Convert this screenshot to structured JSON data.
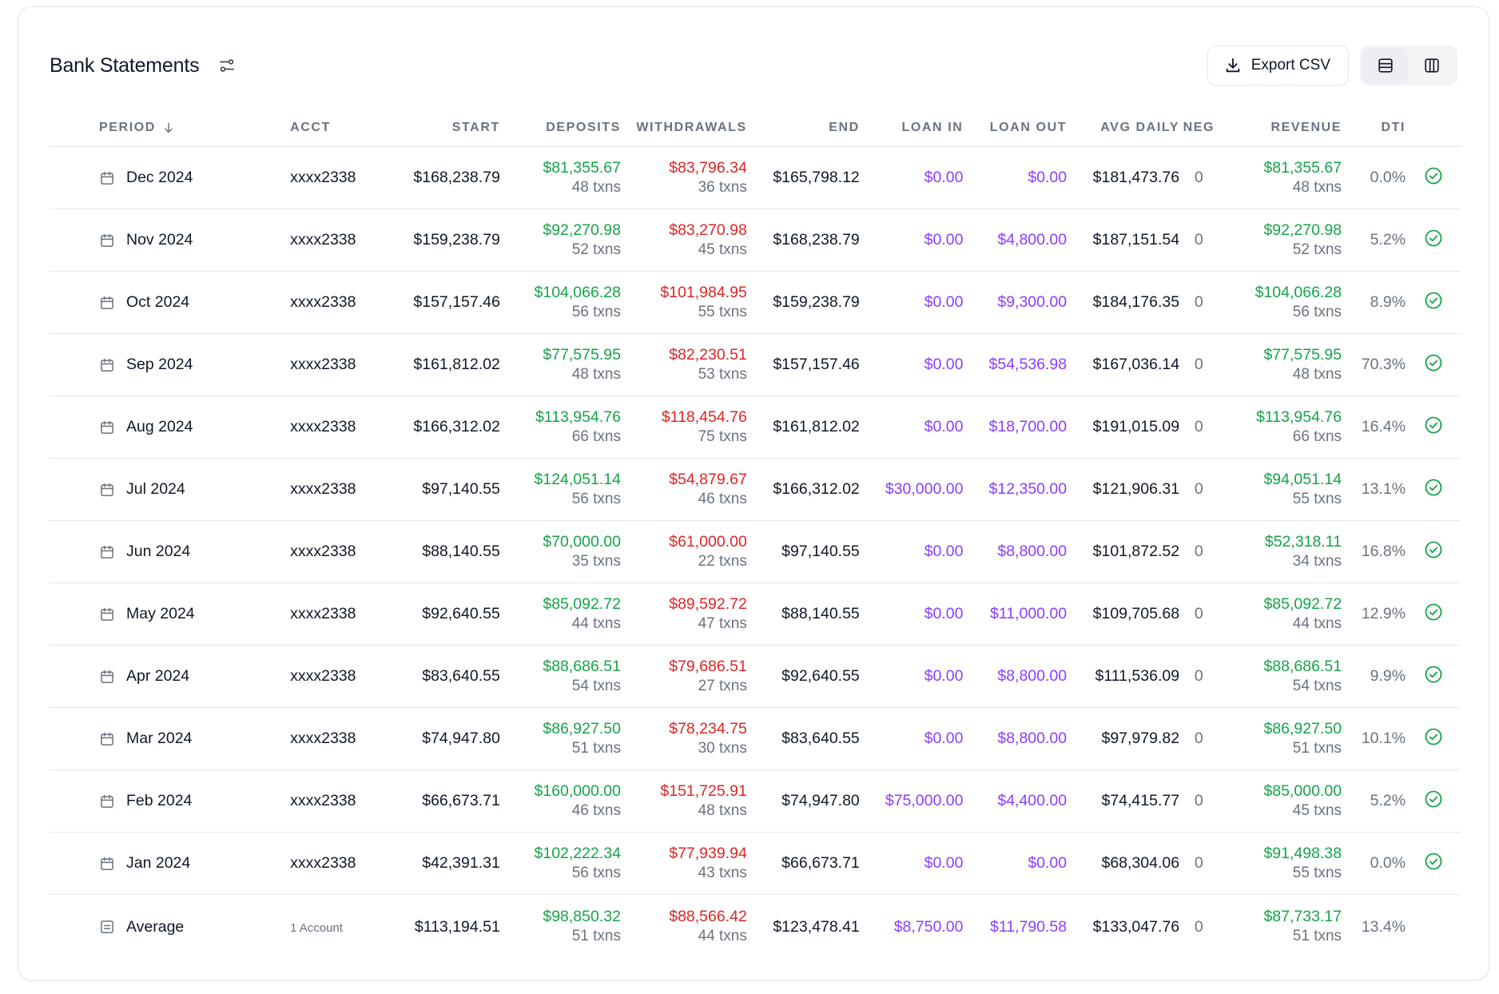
{
  "header": {
    "title": "Bank Statements",
    "export_label": "Export CSV"
  },
  "columns": {
    "period": "PERIOD",
    "acct": "ACCT",
    "start": "START",
    "deposits": "DEPOSITS",
    "withdrawals": "WITHDRAWALS",
    "end": "END",
    "loan_in": "LOAN IN",
    "loan_out": "LOAN OUT",
    "avg_daily": "AVG DAILY",
    "neg": "NEG",
    "revenue": "REVENUE",
    "dti": "DTI"
  },
  "colors": {
    "positive": "#16a34a",
    "negative": "#dc2626",
    "loan": "#8b3dff",
    "check": "#16a34a"
  },
  "rows": [
    {
      "period": "Dec 2024",
      "acct": "xxxx2338",
      "start": "$168,238.79",
      "deposits": "$81,355.67",
      "deposits_txns": "48 txns",
      "withdrawals": "$83,796.34",
      "withdrawals_txns": "36 txns",
      "end": "$165,798.12",
      "loan_in": "$0.00",
      "loan_out": "$0.00",
      "avg_daily": "$181,473.76",
      "neg": "0",
      "revenue": "$81,355.67",
      "revenue_txns": "48 txns",
      "dti": "0.0%"
    },
    {
      "period": "Nov 2024",
      "acct": "xxxx2338",
      "start": "$159,238.79",
      "deposits": "$92,270.98",
      "deposits_txns": "52 txns",
      "withdrawals": "$83,270.98",
      "withdrawals_txns": "45 txns",
      "end": "$168,238.79",
      "loan_in": "$0.00",
      "loan_out": "$4,800.00",
      "avg_daily": "$187,151.54",
      "neg": "0",
      "revenue": "$92,270.98",
      "revenue_txns": "52 txns",
      "dti": "5.2%"
    },
    {
      "period": "Oct 2024",
      "acct": "xxxx2338",
      "start": "$157,157.46",
      "deposits": "$104,066.28",
      "deposits_txns": "56 txns",
      "withdrawals": "$101,984.95",
      "withdrawals_txns": "55 txns",
      "end": "$159,238.79",
      "loan_in": "$0.00",
      "loan_out": "$9,300.00",
      "avg_daily": "$184,176.35",
      "neg": "0",
      "revenue": "$104,066.28",
      "revenue_txns": "56 txns",
      "dti": "8.9%"
    },
    {
      "period": "Sep 2024",
      "acct": "xxxx2338",
      "start": "$161,812.02",
      "deposits": "$77,575.95",
      "deposits_txns": "48 txns",
      "withdrawals": "$82,230.51",
      "withdrawals_txns": "53 txns",
      "end": "$157,157.46",
      "loan_in": "$0.00",
      "loan_out": "$54,536.98",
      "avg_daily": "$167,036.14",
      "neg": "0",
      "revenue": "$77,575.95",
      "revenue_txns": "48 txns",
      "dti": "70.3%"
    },
    {
      "period": "Aug 2024",
      "acct": "xxxx2338",
      "start": "$166,312.02",
      "deposits": "$113,954.76",
      "deposits_txns": "66 txns",
      "withdrawals": "$118,454.76",
      "withdrawals_txns": "75 txns",
      "end": "$161,812.02",
      "loan_in": "$0.00",
      "loan_out": "$18,700.00",
      "avg_daily": "$191,015.09",
      "neg": "0",
      "revenue": "$113,954.76",
      "revenue_txns": "66 txns",
      "dti": "16.4%"
    },
    {
      "period": "Jul 2024",
      "acct": "xxxx2338",
      "start": "$97,140.55",
      "deposits": "$124,051.14",
      "deposits_txns": "56 txns",
      "withdrawals": "$54,879.67",
      "withdrawals_txns": "46 txns",
      "end": "$166,312.02",
      "loan_in": "$30,000.00",
      "loan_out": "$12,350.00",
      "avg_daily": "$121,906.31",
      "neg": "0",
      "revenue": "$94,051.14",
      "revenue_txns": "55 txns",
      "dti": "13.1%"
    },
    {
      "period": "Jun 2024",
      "acct": "xxxx2338",
      "start": "$88,140.55",
      "deposits": "$70,000.00",
      "deposits_txns": "35 txns",
      "withdrawals": "$61,000.00",
      "withdrawals_txns": "22 txns",
      "end": "$97,140.55",
      "loan_in": "$0.00",
      "loan_out": "$8,800.00",
      "avg_daily": "$101,872.52",
      "neg": "0",
      "revenue": "$52,318.11",
      "revenue_txns": "34 txns",
      "dti": "16.8%"
    },
    {
      "period": "May 2024",
      "acct": "xxxx2338",
      "start": "$92,640.55",
      "deposits": "$85,092.72",
      "deposits_txns": "44 txns",
      "withdrawals": "$89,592.72",
      "withdrawals_txns": "47 txns",
      "end": "$88,140.55",
      "loan_in": "$0.00",
      "loan_out": "$11,000.00",
      "avg_daily": "$109,705.68",
      "neg": "0",
      "revenue": "$85,092.72",
      "revenue_txns": "44 txns",
      "dti": "12.9%"
    },
    {
      "period": "Apr 2024",
      "acct": "xxxx2338",
      "start": "$83,640.55",
      "deposits": "$88,686.51",
      "deposits_txns": "54 txns",
      "withdrawals": "$79,686.51",
      "withdrawals_txns": "27 txns",
      "end": "$92,640.55",
      "loan_in": "$0.00",
      "loan_out": "$8,800.00",
      "avg_daily": "$111,536.09",
      "neg": "0",
      "revenue": "$88,686.51",
      "revenue_txns": "54 txns",
      "dti": "9.9%"
    },
    {
      "period": "Mar 2024",
      "acct": "xxxx2338",
      "start": "$74,947.80",
      "deposits": "$86,927.50",
      "deposits_txns": "51 txns",
      "withdrawals": "$78,234.75",
      "withdrawals_txns": "30 txns",
      "end": "$83,640.55",
      "loan_in": "$0.00",
      "loan_out": "$8,800.00",
      "avg_daily": "$97,979.82",
      "neg": "0",
      "revenue": "$86,927.50",
      "revenue_txns": "51 txns",
      "dti": "10.1%"
    },
    {
      "period": "Feb 2024",
      "acct": "xxxx2338",
      "start": "$66,673.71",
      "deposits": "$160,000.00",
      "deposits_txns": "46 txns",
      "withdrawals": "$151,725.91",
      "withdrawals_txns": "48 txns",
      "end": "$74,947.80",
      "loan_in": "$75,000.00",
      "loan_out": "$4,400.00",
      "avg_daily": "$74,415.77",
      "neg": "0",
      "revenue": "$85,000.00",
      "revenue_txns": "45 txns",
      "dti": "5.2%"
    },
    {
      "period": "Jan 2024",
      "acct": "xxxx2338",
      "start": "$42,391.31",
      "deposits": "$102,222.34",
      "deposits_txns": "56 txns",
      "withdrawals": "$77,939.94",
      "withdrawals_txns": "43 txns",
      "end": "$66,673.71",
      "loan_in": "$0.00",
      "loan_out": "$0.00",
      "avg_daily": "$68,304.06",
      "neg": "0",
      "revenue": "$91,498.38",
      "revenue_txns": "55 txns",
      "dti": "0.0%"
    }
  ],
  "average": {
    "period": "Average",
    "acct": "1 Account",
    "start": "$113,194.51",
    "deposits": "$98,850.32",
    "deposits_txns": "51 txns",
    "withdrawals": "$88,566.42",
    "withdrawals_txns": "44 txns",
    "end": "$123,478.41",
    "loan_in": "$8,750.00",
    "loan_out": "$11,790.58",
    "avg_daily": "$133,047.76",
    "neg": "0",
    "revenue": "$87,733.17",
    "revenue_txns": "51 txns",
    "dti": "13.4%"
  }
}
